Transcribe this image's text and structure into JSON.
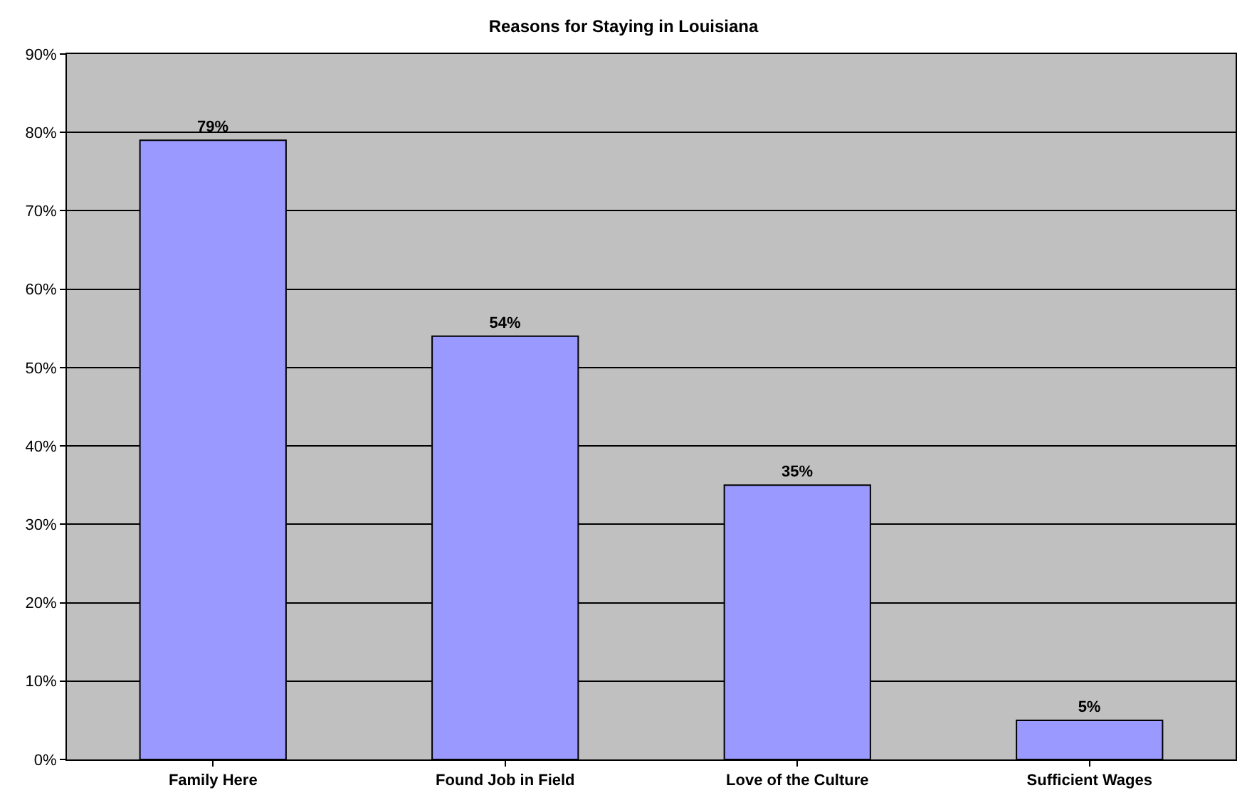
{
  "chart_data": {
    "type": "bar",
    "title": "Reasons for Staying in Louisiana",
    "categories": [
      "Family Here",
      "Found Job in Field",
      "Love of the Culture",
      "Sufficient Wages"
    ],
    "values": [
      79,
      54,
      35,
      5
    ],
    "color": "#9999ff",
    "value_labels": [
      "79%",
      "54%",
      "35%",
      "5%"
    ],
    "ylim": [
      0,
      90
    ],
    "yticks": [
      {
        "value": 0,
        "label": "0%"
      },
      {
        "value": 10,
        "label": "10%"
      },
      {
        "value": 20,
        "label": "20%"
      },
      {
        "value": 30,
        "label": "30%"
      },
      {
        "value": 40,
        "label": "40%"
      },
      {
        "value": 50,
        "label": "50%"
      },
      {
        "value": 60,
        "label": "60%"
      },
      {
        "value": 70,
        "label": "70%"
      },
      {
        "value": 80,
        "label": "80%"
      },
      {
        "value": 90,
        "label": "90%"
      }
    ],
    "grid": "y"
  }
}
